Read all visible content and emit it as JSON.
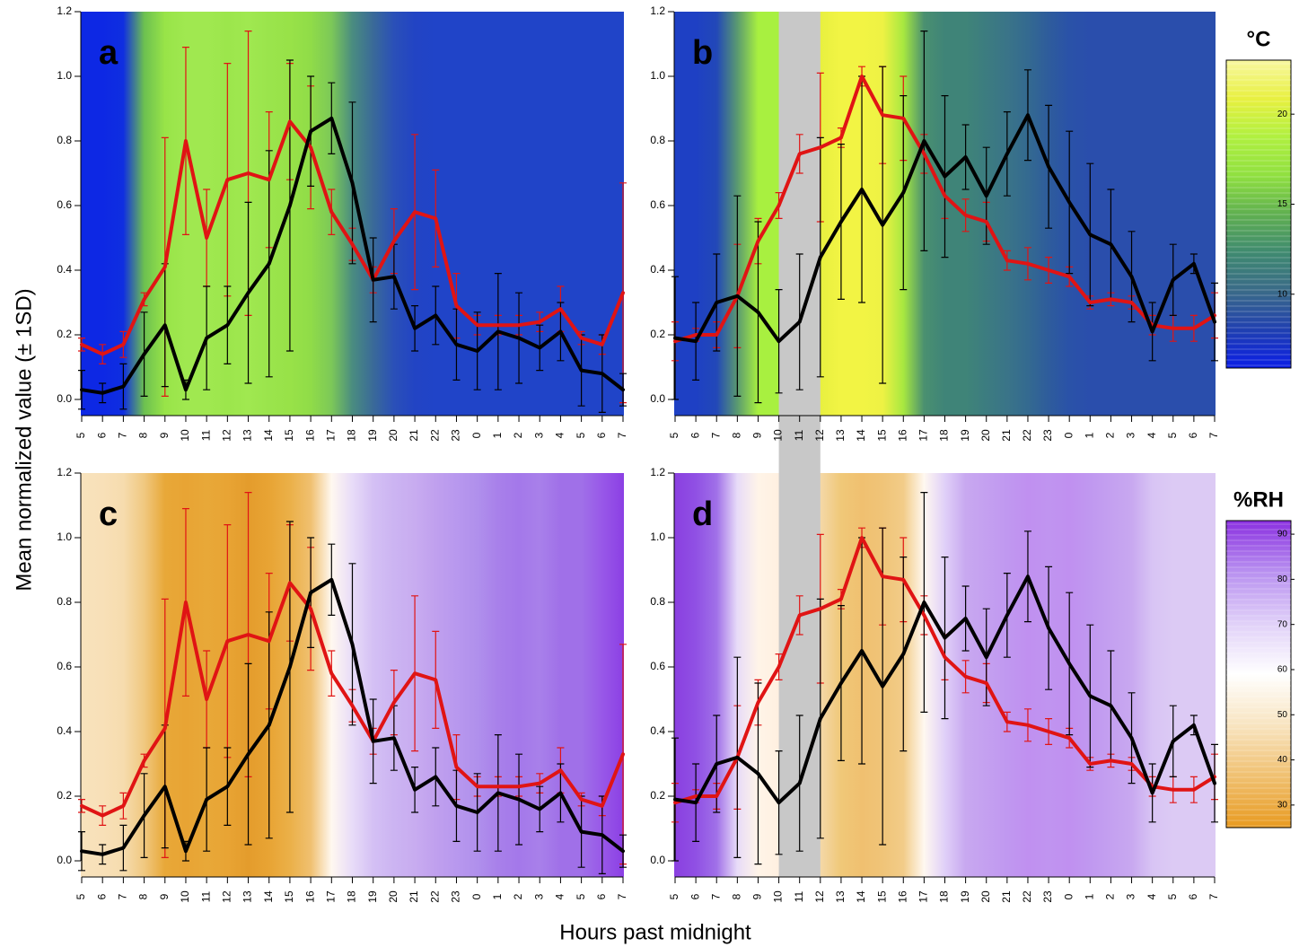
{
  "chart_data": [
    {
      "type": "line",
      "label": "a",
      "categories": [
        "5",
        "6",
        "7",
        "8",
        "9",
        "10",
        "11",
        "12",
        "13",
        "14",
        "15",
        "16",
        "17",
        "18",
        "19",
        "20",
        "21",
        "22",
        "23",
        "0",
        "1",
        "2",
        "3",
        "4",
        "5",
        "6",
        "7"
      ],
      "ylim": [
        -0.05,
        1.2
      ],
      "yticks": [
        {
          "value": 0,
          "label": "0.0"
        },
        0.2,
        0.4,
        0.6,
        0.8,
        {
          "value": 1,
          "label": "1.0"
        },
        1.2
      ],
      "background": [
        "#0d28e4",
        "#0d28e4",
        "#0f2ee0",
        "#6cc050",
        "#98e448",
        "#a0e850",
        "#a0e850",
        "#9ce64c",
        "#a0e850",
        "#9ae44c",
        "#98e248",
        "#90dc48",
        "#7cc858",
        "#4a8c80",
        "#3a6a98",
        "#2a50b8",
        "#2244c4",
        "#2044c8",
        "#2044c8",
        "#2044c8",
        "#2044c8",
        "#2044c8",
        "#2044c8",
        "#2044c8",
        "#2044c8",
        "#2044c8",
        "#2044c8"
      ],
      "series": [
        {
          "color": "#e01414",
          "values": [
            0.17,
            0.14,
            0.17,
            0.31,
            0.41,
            0.8,
            0.5,
            0.68,
            0.7,
            0.68,
            0.86,
            0.78,
            0.58,
            0.48,
            0.37,
            0.49,
            0.58,
            0.56,
            0.29,
            0.23,
            0.23,
            0.23,
            0.24,
            0.28,
            0.19,
            0.17,
            0.33
          ],
          "errors": [
            0.02,
            0.03,
            0.04,
            0.02,
            0.4,
            0.29,
            0.15,
            0.36,
            0.44,
            0.21,
            0.18,
            0.19,
            0.07,
            0.05,
            0.04,
            0.1,
            0.24,
            0.15,
            0.1,
            0.03,
            0.03,
            0.03,
            0.03,
            0.07,
            0.02,
            0.03,
            0.34
          ]
        },
        {
          "color": "#000000",
          "values": [
            0.03,
            0.02,
            0.04,
            0.14,
            0.23,
            0.03,
            0.19,
            0.23,
            0.33,
            0.42,
            0.6,
            0.83,
            0.87,
            0.67,
            0.37,
            0.38,
            0.22,
            0.26,
            0.17,
            0.15,
            0.21,
            0.19,
            0.16,
            0.21,
            0.09,
            0.08,
            0.03
          ],
          "errors": [
            0.06,
            0.03,
            0.07,
            0.13,
            0.19,
            0.03,
            0.16,
            0.12,
            0.28,
            0.35,
            0.45,
            0.17,
            0.11,
            0.25,
            0.13,
            0.1,
            0.07,
            0.09,
            0.11,
            0.12,
            0.18,
            0.14,
            0.07,
            0.09,
            0.11,
            0.12,
            0.05
          ]
        }
      ]
    },
    {
      "type": "line",
      "label": "b",
      "categories": [
        "5",
        "6",
        "7",
        "8",
        "9",
        "10",
        "11",
        "12",
        "13",
        "14",
        "15",
        "16",
        "17",
        "18",
        "19",
        "20",
        "21",
        "22",
        "23",
        "0",
        "1",
        "2",
        "3",
        "4",
        "5",
        "6",
        "7"
      ],
      "ylim": [
        -0.05,
        1.2
      ],
      "yticks": [
        {
          "value": 0,
          "label": "0.0"
        },
        0.2,
        0.4,
        0.6,
        0.8,
        {
          "value": 1,
          "label": "1.0"
        },
        1.2
      ],
      "highlight": {
        "from": "10",
        "to": "12",
        "color": "#c8c8c8"
      },
      "background": [
        "#1e40c4",
        "#1e40c4",
        "#2248b8",
        "#5a9a70",
        "#a8f040",
        "#a8f040",
        "#c0f040",
        "#e8f040",
        "#f2f444",
        "#f2f444",
        "#eef244",
        "#a8e840",
        "#4a9070",
        "#3f8478",
        "#3f8478",
        "#3c7c80",
        "#3a7488",
        "#346a90",
        "#2e5c9c",
        "#2a52a8",
        "#2a4eac",
        "#2a4eac",
        "#2a4eac",
        "#2a4eac",
        "#2a4eac",
        "#2a4eac",
        "#2a4eac"
      ],
      "series": [
        {
          "color": "#e01414",
          "values": [
            0.18,
            0.2,
            0.2,
            0.32,
            0.49,
            0.6,
            0.76,
            0.78,
            0.81,
            1.0,
            0.88,
            0.87,
            0.76,
            0.63,
            0.57,
            0.55,
            0.43,
            0.42,
            0.4,
            0.38,
            0.3,
            0.31,
            0.3,
            0.23,
            0.22,
            0.22,
            0.26
          ],
          "errors": [
            0.06,
            0.02,
            0.04,
            0.16,
            0.07,
            0.04,
            0.06,
            0.23,
            0.03,
            0.03,
            0.15,
            0.13,
            0.06,
            0.07,
            0.05,
            0.06,
            0.03,
            0.05,
            0.04,
            0.03,
            0.02,
            0.02,
            0.02,
            0.03,
            0.04,
            0.04,
            0.07
          ]
        },
        {
          "color": "#000000",
          "values": [
            0.19,
            0.18,
            0.3,
            0.32,
            0.27,
            0.18,
            0.24,
            0.44,
            0.55,
            0.65,
            0.54,
            0.64,
            0.8,
            0.69,
            0.75,
            0.63,
            0.76,
            0.88,
            0.72,
            0.61,
            0.51,
            0.48,
            0.38,
            0.21,
            0.37,
            0.42,
            0.24
          ],
          "errors": [
            0.19,
            0.12,
            0.15,
            0.31,
            0.28,
            0.16,
            0.21,
            0.37,
            0.24,
            0.35,
            0.49,
            0.3,
            0.34,
            0.25,
            0.1,
            0.15,
            0.13,
            0.14,
            0.19,
            0.22,
            0.22,
            0.17,
            0.14,
            0.09,
            0.11,
            0.03,
            0.12
          ]
        }
      ]
    },
    {
      "type": "line",
      "label": "c",
      "categories": [
        "5",
        "6",
        "7",
        "8",
        "9",
        "10",
        "11",
        "12",
        "13",
        "14",
        "15",
        "16",
        "17",
        "18",
        "19",
        "20",
        "21",
        "22",
        "23",
        "0",
        "1",
        "2",
        "3",
        "4",
        "5",
        "6",
        "7"
      ],
      "ylim": [
        -0.05,
        1.2
      ],
      "yticks": [
        {
          "value": 0,
          "label": "0.0"
        },
        0.2,
        0.4,
        0.6,
        0.8,
        {
          "value": 1,
          "label": "1.0"
        },
        1.2
      ],
      "background": [
        "#f8e2bc",
        "#f8e0b8",
        "#f6dcae",
        "#f0c880",
        "#e8a838",
        "#e8a434",
        "#e8a838",
        "#e8a434",
        "#e49c2c",
        "#e8a434",
        "#ebb048",
        "#f0c070",
        "#fff8f0",
        "#e8dcf8",
        "#d4c0f4",
        "#ccb4f2",
        "#c8acf0",
        "#c0a0ee",
        "#b898ee",
        "#b090ec",
        "#a880ea",
        "#a478ea",
        "#a880ea",
        "#a070e8",
        "#a070e8",
        "#9858e8",
        "#8c40e4"
      ],
      "series": [
        {
          "color": "#e01414",
          "values": [
            0.17,
            0.14,
            0.17,
            0.31,
            0.41,
            0.8,
            0.5,
            0.68,
            0.7,
            0.68,
            0.86,
            0.78,
            0.58,
            0.48,
            0.37,
            0.49,
            0.58,
            0.56,
            0.29,
            0.23,
            0.23,
            0.23,
            0.24,
            0.28,
            0.19,
            0.17,
            0.33
          ],
          "errors": [
            0.02,
            0.03,
            0.04,
            0.02,
            0.4,
            0.29,
            0.15,
            0.36,
            0.44,
            0.21,
            0.18,
            0.19,
            0.07,
            0.05,
            0.04,
            0.1,
            0.24,
            0.15,
            0.1,
            0.03,
            0.03,
            0.03,
            0.03,
            0.07,
            0.02,
            0.03,
            0.34
          ]
        },
        {
          "color": "#000000",
          "values": [
            0.03,
            0.02,
            0.04,
            0.14,
            0.23,
            0.03,
            0.19,
            0.23,
            0.33,
            0.42,
            0.6,
            0.83,
            0.87,
            0.67,
            0.37,
            0.38,
            0.22,
            0.26,
            0.17,
            0.15,
            0.21,
            0.19,
            0.16,
            0.21,
            0.09,
            0.08,
            0.03
          ],
          "errors": [
            0.06,
            0.03,
            0.07,
            0.13,
            0.19,
            0.03,
            0.16,
            0.12,
            0.28,
            0.35,
            0.45,
            0.17,
            0.11,
            0.25,
            0.13,
            0.1,
            0.07,
            0.09,
            0.11,
            0.12,
            0.18,
            0.14,
            0.07,
            0.09,
            0.11,
            0.12,
            0.05
          ]
        }
      ]
    },
    {
      "type": "line",
      "label": "d",
      "categories": [
        "5",
        "6",
        "7",
        "8",
        "9",
        "10",
        "11",
        "12",
        "13",
        "14",
        "15",
        "16",
        "17",
        "18",
        "19",
        "20",
        "21",
        "22",
        "23",
        "0",
        "1",
        "2",
        "3",
        "4",
        "5",
        "6",
        "7"
      ],
      "ylim": [
        -0.05,
        1.2
      ],
      "yticks": [
        {
          "value": 0,
          "label": "0.0"
        },
        0.2,
        0.4,
        0.6,
        0.8,
        {
          "value": 1,
          "label": "1.0"
        },
        1.2
      ],
      "highlight": {
        "from": "10",
        "to": "12",
        "color": "#c8c8c8"
      },
      "background": [
        "#8a40e0",
        "#9050e4",
        "#a070e8",
        "#e8dcf8",
        "#fff4e8",
        "#fff0e0",
        "#fff0e0",
        "#f4d8a8",
        "#f0c878",
        "#f0c070",
        "#f0c478",
        "#f2cc88",
        "#fff8f0",
        "#e0d0f8",
        "#c8a8f0",
        "#c4a0f0",
        "#c098f0",
        "#c090f0",
        "#c094f0",
        "#c090f0",
        "#c098f0",
        "#c4a0f0",
        "#c8a8f0",
        "#d8c4f4",
        "#dccaf4",
        "#dccaf4",
        "#dccaf4"
      ],
      "series": [
        {
          "color": "#e01414",
          "values": [
            0.18,
            0.2,
            0.2,
            0.32,
            0.49,
            0.6,
            0.76,
            0.78,
            0.81,
            1.0,
            0.88,
            0.87,
            0.76,
            0.63,
            0.57,
            0.55,
            0.43,
            0.42,
            0.4,
            0.38,
            0.3,
            0.31,
            0.3,
            0.23,
            0.22,
            0.22,
            0.26
          ],
          "errors": [
            0.06,
            0.02,
            0.04,
            0.16,
            0.07,
            0.04,
            0.06,
            0.23,
            0.03,
            0.03,
            0.15,
            0.13,
            0.06,
            0.07,
            0.05,
            0.06,
            0.03,
            0.05,
            0.04,
            0.03,
            0.02,
            0.02,
            0.02,
            0.03,
            0.04,
            0.04,
            0.07
          ]
        },
        {
          "color": "#000000",
          "values": [
            0.19,
            0.18,
            0.3,
            0.32,
            0.27,
            0.18,
            0.24,
            0.44,
            0.55,
            0.65,
            0.54,
            0.64,
            0.8,
            0.69,
            0.75,
            0.63,
            0.76,
            0.88,
            0.72,
            0.61,
            0.51,
            0.48,
            0.38,
            0.21,
            0.37,
            0.42,
            0.24
          ],
          "errors": [
            0.19,
            0.12,
            0.15,
            0.31,
            0.28,
            0.16,
            0.21,
            0.37,
            0.24,
            0.35,
            0.49,
            0.3,
            0.34,
            0.25,
            0.1,
            0.15,
            0.13,
            0.14,
            0.19,
            0.22,
            0.22,
            0.17,
            0.14,
            0.09,
            0.11,
            0.03,
            0.12
          ]
        }
      ]
    }
  ],
  "ylabel": "Mean normalized value (± 1SD)",
  "xlabel": "Hours past midnight",
  "colorbars": [
    {
      "title": "°C",
      "lim": [
        5.9,
        23
      ],
      "ticks": [
        10,
        15,
        20
      ],
      "colors": [
        "#0b1ee6",
        "#2040b0",
        "#3a6a88",
        "#3f8a70",
        "#60b050",
        "#90e040",
        "#b0f040",
        "#e8f040",
        "#f8f8a0"
      ]
    },
    {
      "title": "%RH",
      "lim": [
        25,
        93
      ],
      "ticks": [
        30,
        40,
        50,
        60,
        70,
        80,
        90
      ],
      "colors": [
        "#e89a20",
        "#f0c070",
        "#f8e4c0",
        "#ffffff",
        "#e0d0f8",
        "#b890f0",
        "#8a30e0"
      ]
    }
  ]
}
